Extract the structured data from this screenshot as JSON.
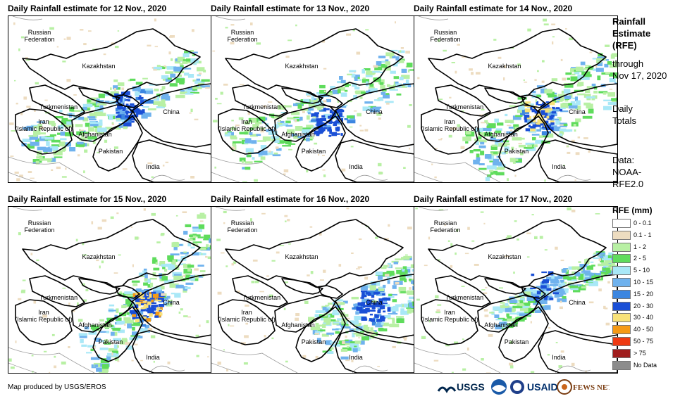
{
  "panels": [
    {
      "title": "Daily Rainfall estimate for 12 Nov., 2020",
      "rain_intensity": "moderate"
    },
    {
      "title": "Daily Rainfall estimate for 13 Nov., 2020",
      "rain_intensity": "moderate"
    },
    {
      "title": "Daily Rainfall estimate for 14 Nov., 2020",
      "rain_intensity": "heavy"
    },
    {
      "title": "Daily Rainfall estimate for 15 Nov., 2020",
      "rain_intensity": "very-heavy"
    },
    {
      "title": "Daily Rainfall estimate for 16 Nov., 2020",
      "rain_intensity": "moderate"
    },
    {
      "title": "Daily Rainfall estimate for 17 Nov., 2020",
      "rain_intensity": "light"
    }
  ],
  "map_labels": {
    "russia": "Russian\nFederation",
    "kazakhstan": "Kazakhstan",
    "turkmenistan": "Turkmenistan",
    "iran": "Iran\n(Islamic Republic of)",
    "afghanistan": "Afghanistan",
    "pakistan": "Pakistan",
    "china": "China",
    "india": "India"
  },
  "sidebar": {
    "heading": "Rainfall\nEstimate\n(RFE)",
    "through": "through\nNov 17, 2020",
    "totals": "Daily\nTotals",
    "source": "Data:\nNOAA-\nRFE2.0"
  },
  "legend": {
    "title": "RFE (mm)",
    "items": [
      {
        "label": "0 - 0.1",
        "color": "#ffffff"
      },
      {
        "label": "0.1 - 1",
        "color": "#eddcc0"
      },
      {
        "label": "1 - 2",
        "color": "#b8f0a4"
      },
      {
        "label": "2 - 5",
        "color": "#5fdc5c"
      },
      {
        "label": "5 - 10",
        "color": "#a9e8f7"
      },
      {
        "label": "10 - 15",
        "color": "#6fb2ee"
      },
      {
        "label": "15 - 20",
        "color": "#3c86e0"
      },
      {
        "label": "20 - 30",
        "color": "#1a4fd6"
      },
      {
        "label": "30 - 40",
        "color": "#f8e27a"
      },
      {
        "label": "40 - 50",
        "color": "#f59a16"
      },
      {
        "label": "50 - 75",
        "color": "#ee3a12"
      },
      {
        "label": "> 75",
        "color": "#a01e1e"
      },
      {
        "label": "No Data",
        "color": "#8c8c8c"
      }
    ]
  },
  "footer": {
    "credit": "Map produced by USGS/EROS"
  },
  "logos": {
    "usgs": "USGS",
    "usaid": "USAID",
    "fewsnet": "FEWS NET"
  }
}
